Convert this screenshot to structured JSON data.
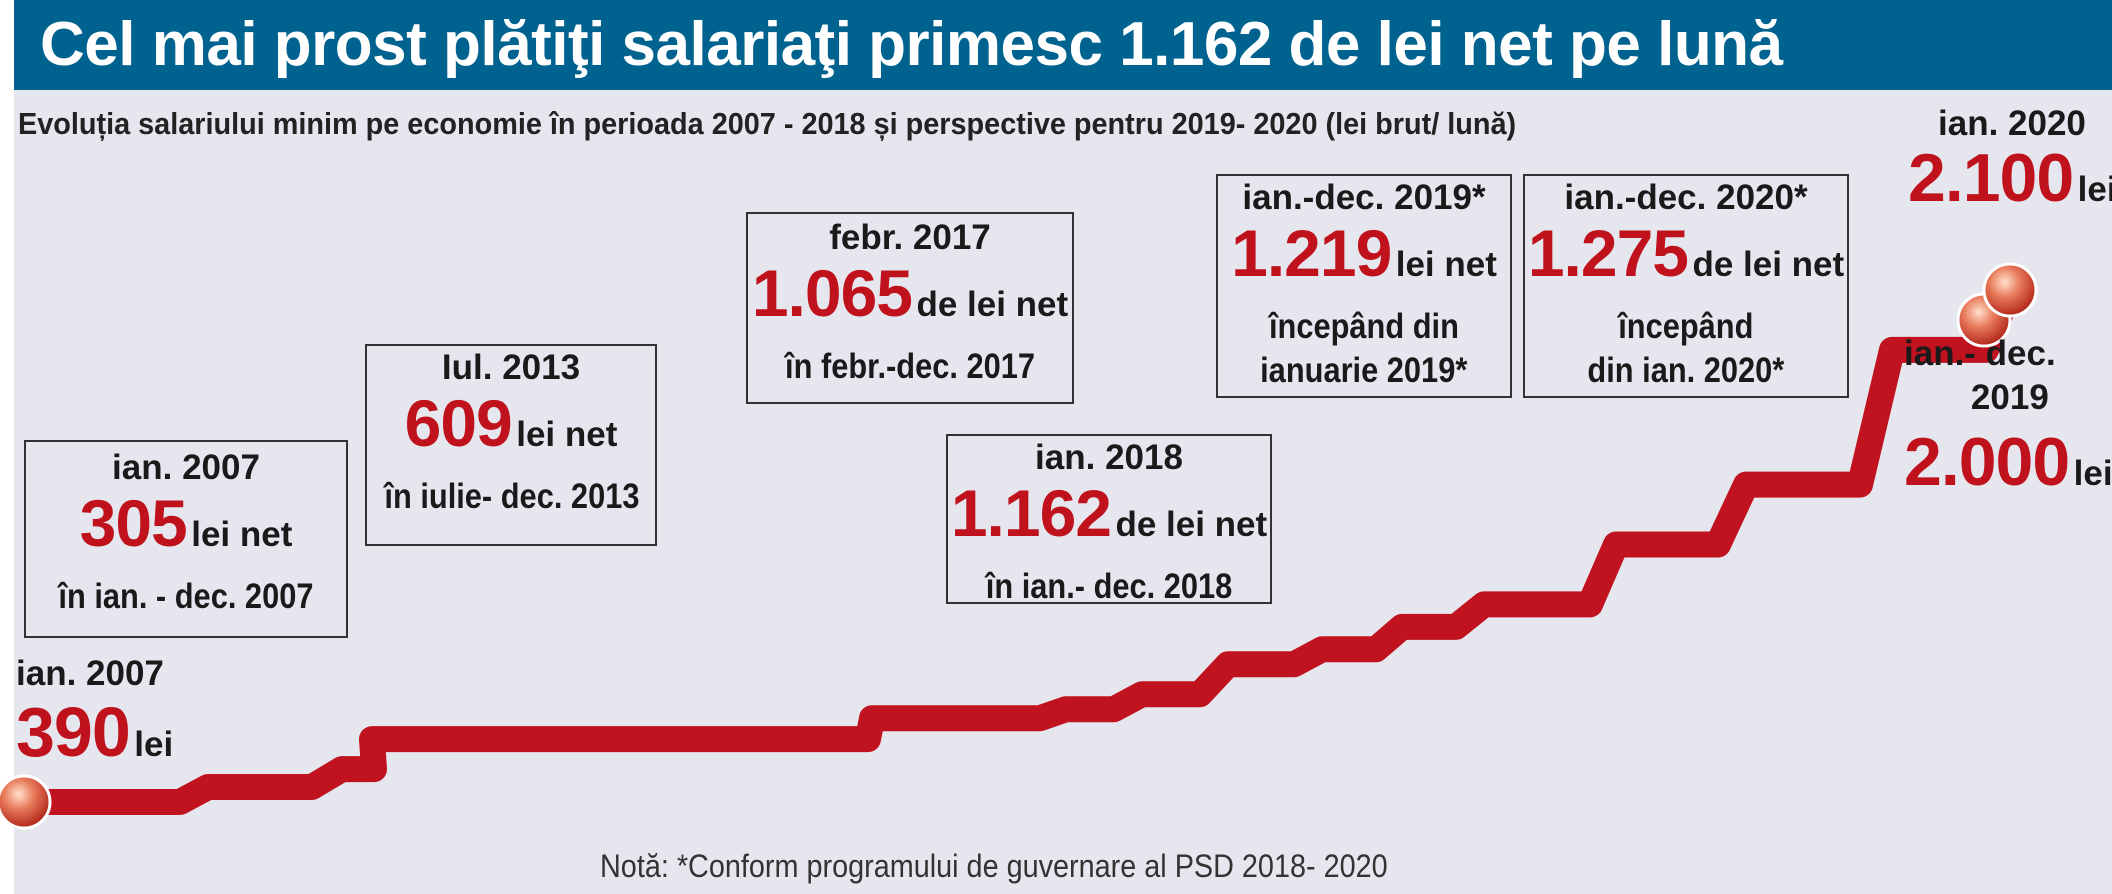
{
  "headline": "Cel mai prost plătiţi salariaţi primesc 1.162 de lei net pe lună",
  "chart_data": {
    "type": "line",
    "title": "Evoluția salariului minim pe economie în perioada 2007 - 2018 și perspective pentru 2019- 2020 (lei brut/ lună)",
    "xlabel": "",
    "ylabel": "",
    "grid": false,
    "note": "Notă: *Conform programului de guvernare al PSD 2018- 2020",
    "series": [
      {
        "values": [
          390,
          440,
          500,
          600,
          600,
          670,
          700,
          750,
          850,
          900,
          975,
          1050,
          1250,
          1450,
          1900,
          2080,
          2000,
          2100
        ]
      }
    ],
    "gross_labels": [
      {
        "date": "ian. 2007",
        "value": "390",
        "unit": "lei"
      },
      {
        "date_lines": [
          "ian.- dec.",
          "2019"
        ],
        "value": "2.000",
        "unit": "lei"
      },
      {
        "date": "ian. 2020",
        "value": "2.100",
        "unit": "lei"
      }
    ],
    "net_boxes": [
      {
        "date": "ian. 2007",
        "value": "305",
        "unit": "lei net",
        "period": "în ian. - dec. 2007"
      },
      {
        "date": "Iul. 2013",
        "value": "609",
        "unit": "lei net",
        "period": "în iulie- dec. 2013"
      },
      {
        "date": "febr. 2017",
        "value": "1.065",
        "unit": "de lei net",
        "period": "în febr.-dec. 2017"
      },
      {
        "date": "ian. 2018",
        "value": "1.162",
        "unit": "de lei net",
        "period": "în ian.- dec. 2018"
      },
      {
        "date": "ian.-dec. 2019*",
        "value": "1.219",
        "unit": "lei net",
        "period_lines": [
          "începând din",
          "ianuarie 2019*"
        ]
      },
      {
        "date": "ian.-dec. 2020*",
        "value": "1.275",
        "unit": "de lei net",
        "period_lines": [
          "începând",
          "din ian. 2020*"
        ]
      }
    ]
  }
}
